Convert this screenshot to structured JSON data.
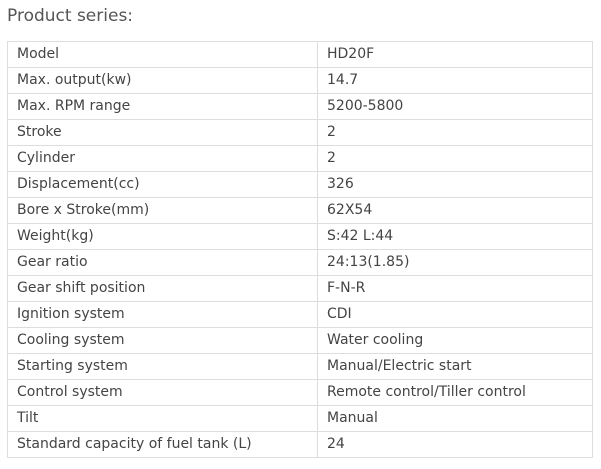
{
  "title": "Product series:",
  "rows": [
    {
      "label": "Model",
      "value": "HD20F"
    },
    {
      "label": "Max. output(kw)",
      "value": "14.7"
    },
    {
      "label": "Max. RPM range",
      "value": "5200-5800"
    },
    {
      "label": "Stroke",
      "value": "2"
    },
    {
      "label": "Cylinder",
      "value": "2"
    },
    {
      "label": "Displacement(cc)",
      "value": "326"
    },
    {
      "label": "Bore x Stroke(mm)",
      "value": "62X54"
    },
    {
      "label": "Weight(kg)",
      "value": "S:42 L:44"
    },
    {
      "label": "Gear ratio",
      "value": "24:13(1.85)"
    },
    {
      "label": "Gear shift position",
      "value": "F-N-R"
    },
    {
      "label": "Ignition system",
      "value": "CDI"
    },
    {
      "label": "Cooling system",
      "value": "Water cooling"
    },
    {
      "label": "Starting system",
      "value": "Manual/Electric start"
    },
    {
      "label": "Control system",
      "value": "Remote control/Tiller control"
    },
    {
      "label": "Tilt",
      "value": "Manual"
    },
    {
      "label": "Standard capacity of fuel tank (L)",
      "value": "24"
    }
  ]
}
